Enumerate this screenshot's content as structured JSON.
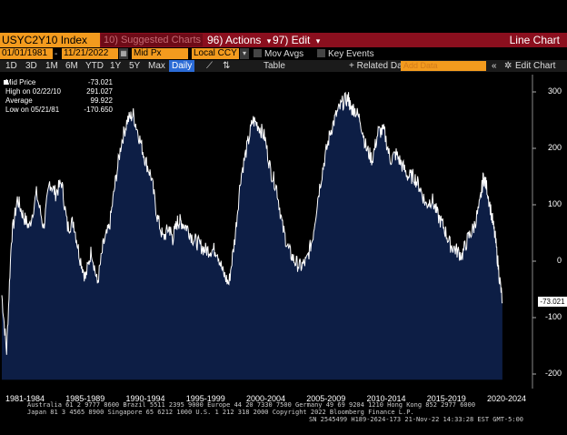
{
  "toolbar": {
    "ticker": "USYC2Y10 Index",
    "suggested": "10) Suggested Charts",
    "actions": "96) Actions",
    "actions_arrow": "▾",
    "edit": "97) Edit",
    "edit_arrow": "▾",
    "chart_type": "Line Chart"
  },
  "range": {
    "start": "01/01/1981",
    "end": "11/21/2022",
    "field": "Mid Px",
    "currency": "Local CCY",
    "mov_avgs": "Mov Avgs",
    "key_events": "Key Events"
  },
  "periods": {
    "items": [
      "1D",
      "3D",
      "1M",
      "6M",
      "YTD",
      "1Y",
      "5Y",
      "Max"
    ],
    "frequency": "Daily",
    "table": "Table",
    "related": "+ Related Dat",
    "add_data_placeholder": "Add Data",
    "edit_chart": "Edit Chart",
    "nav": "«",
    "gear": "✲"
  },
  "legend": {
    "rows": [
      {
        "label": "Mid Price",
        "value": "-73.021"
      },
      {
        "label": "High on 02/22/10",
        "value": "291.027"
      },
      {
        "label": "Average",
        "value": "99.922"
      },
      {
        "label": "Low on 05/21/81",
        "value": "-170.650"
      }
    ]
  },
  "colors": {
    "area": "#0d1e45",
    "line": "#ffffff",
    "accent": "#f39b1e",
    "bar": "#8b0f1e"
  },
  "last_value_label": "-73.021",
  "footer": {
    "line1": "Australia 61 2 9777 8600 Brazil 5511 2395 9000 Europe 44 20 7330 7500 Germany 49 69 9204 1210 Hong Kong 852 2977 6000",
    "line2": "Japan 81 3 4565 8900        Singapore 65 6212 1000        U.S. 1 212 318 2000        Copyright 2022 Bloomberg Finance L.P.",
    "line3": "SN 2545499 H189-2624-173 21-Nov-22 14:33:28 EST  GMT-5:00"
  },
  "chart_data": {
    "type": "area",
    "title": "",
    "xlabel": "",
    "ylabel": "",
    "ylim": [
      -210,
      320
    ],
    "yticks": [
      300,
      200,
      100,
      0,
      -100,
      -200
    ],
    "xlim": [
      1981.0,
      2024.8
    ],
    "x_tick_labels": [
      "1981-1984",
      "1985-1989",
      "1990-1994",
      "1995-1999",
      "2000-2004",
      "2005-2009",
      "2010-2014",
      "2015-2019",
      "2020-2024"
    ],
    "grid": false,
    "legend_position": "top-left",
    "series": [
      {
        "x": [
          1981.0,
          1981.4,
          1981.8,
          1982.3,
          1982.8,
          1983.3,
          1983.9,
          1984.5,
          1985.0,
          1985.5,
          1986.0,
          1986.5,
          1987.0,
          1987.5,
          1988.0,
          1988.5,
          1989.0,
          1989.5,
          1990.0,
          1990.5,
          1991.0,
          1991.5,
          1992.0,
          1992.5,
          1993.0,
          1993.5,
          1994.0,
          1994.5,
          1995.0,
          1995.3,
          1995.7,
          1996.0,
          1996.5,
          1997.0,
          1997.5,
          1998.0,
          1998.5,
          1999.0,
          1999.5,
          2000.0,
          2000.5,
          2001.0,
          2001.5,
          2002.0,
          2002.5,
          2003.0,
          2003.5,
          2004.0,
          2004.5,
          2005.0,
          2005.5,
          2006.0,
          2006.5,
          2007.0,
          2007.5,
          2008.0,
          2008.5,
          2009.0,
          2009.5,
          2010.0,
          2010.2,
          2010.5,
          2011.0,
          2011.5,
          2012.0,
          2012.5,
          2013.0,
          2013.5,
          2014.0,
          2014.5,
          2015.0,
          2015.5,
          2016.0,
          2016.5,
          2017.0,
          2017.5,
          2018.0,
          2018.5,
          2019.0,
          2019.5,
          2020.0,
          2020.5,
          2021.0,
          2021.3,
          2021.6,
          2022.0,
          2022.3,
          2022.6,
          2022.89
        ],
        "y": [
          -60,
          -160,
          40,
          110,
          80,
          60,
          120,
          60,
          140,
          120,
          140,
          60,
          70,
          10,
          -30,
          20,
          -40,
          30,
          60,
          140,
          210,
          250,
          260,
          220,
          180,
          150,
          80,
          40,
          60,
          40,
          70,
          70,
          60,
          40,
          30,
          20,
          20,
          20,
          -20,
          -40,
          40,
          150,
          200,
          250,
          240,
          220,
          160,
          130,
          60,
          20,
          0,
          -10,
          0,
          40,
          120,
          180,
          230,
          260,
          280,
          290,
          270,
          270,
          250,
          200,
          180,
          230,
          230,
          180,
          190,
          170,
          150,
          150,
          130,
          100,
          110,
          80,
          60,
          30,
          20,
          10,
          40,
          60,
          100,
          150,
          130,
          80,
          40,
          -20,
          -73
        ]
      }
    ]
  }
}
